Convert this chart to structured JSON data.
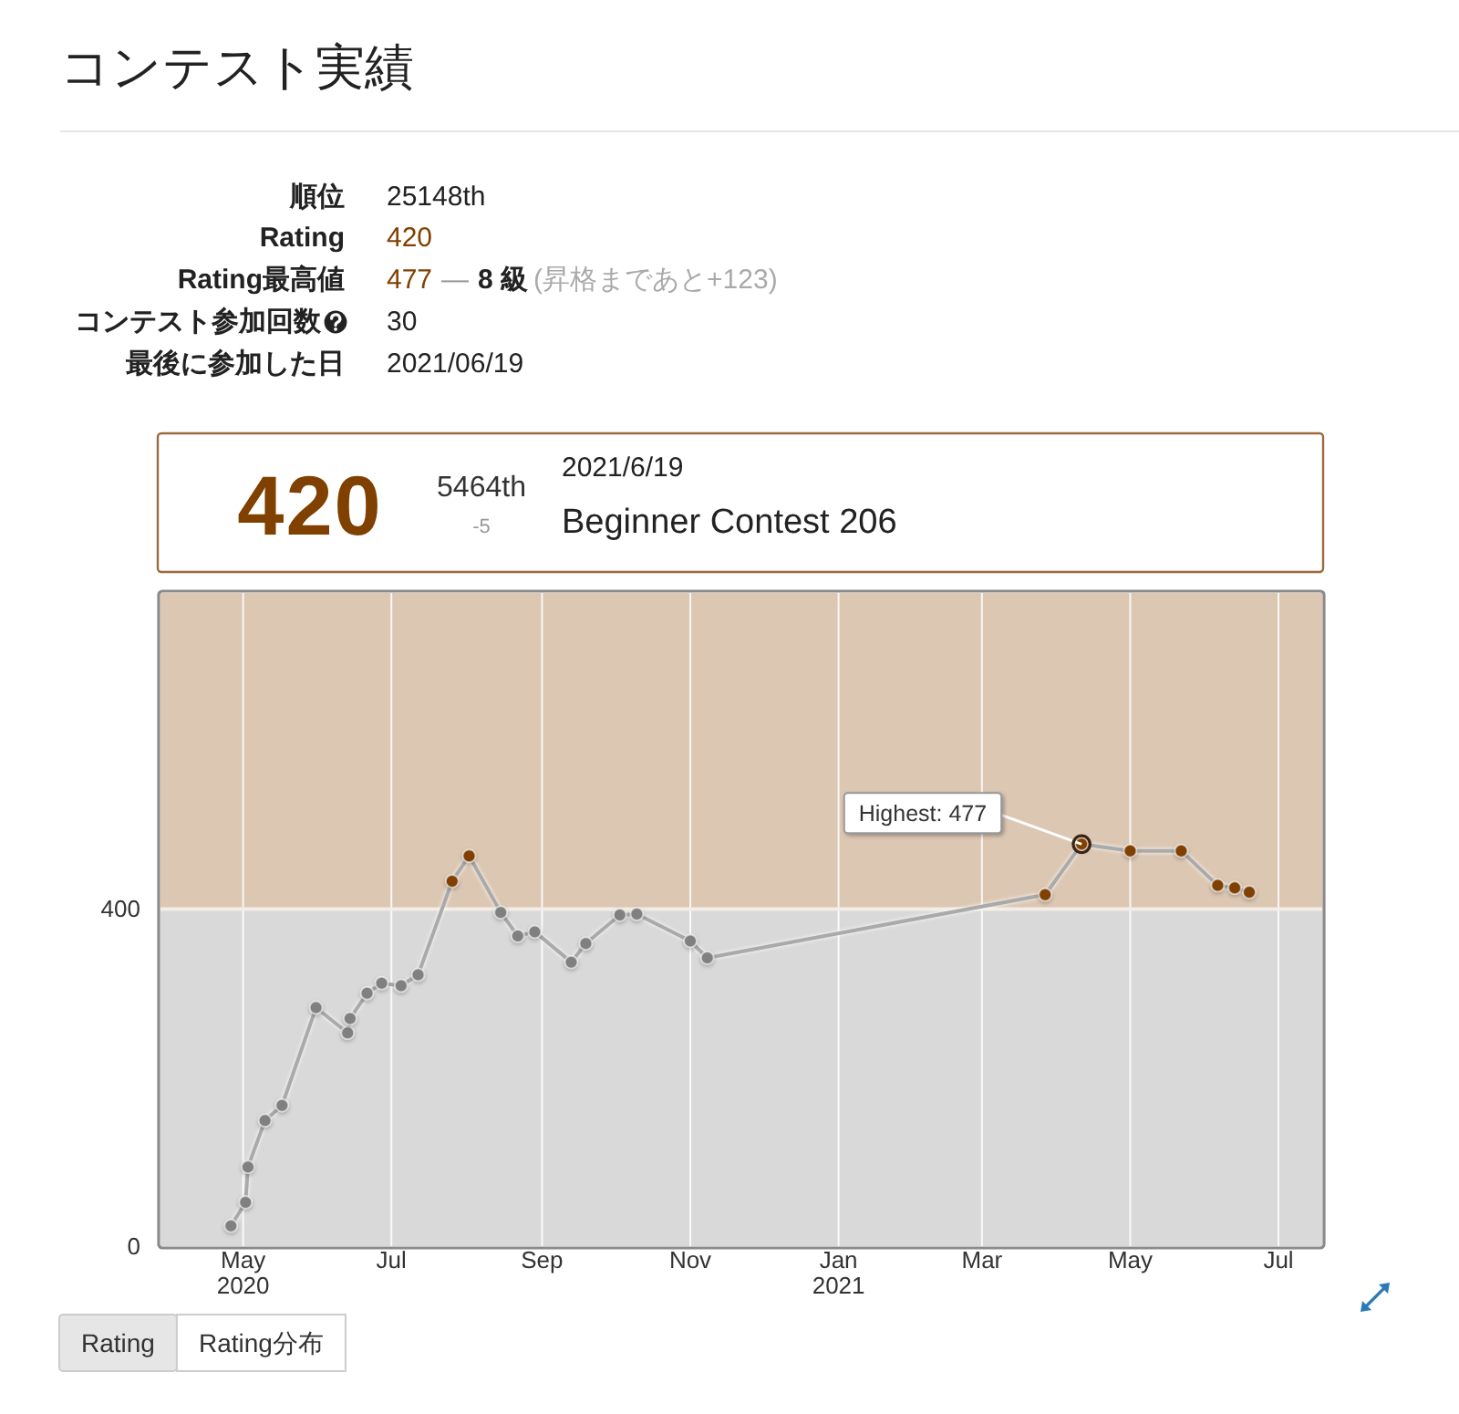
{
  "chart_data": {
    "type": "line",
    "title": "コンテスト実績",
    "x": [
      "2020-04-26",
      "2020-05-02",
      "2020-05-03",
      "2020-05-10",
      "2020-05-17",
      "2020-05-31",
      "2020-06-13",
      "2020-06-14",
      "2020-06-21",
      "2020-06-27",
      "2020-07-05",
      "2020-07-12",
      "2020-07-26",
      "2020-08-02",
      "2020-08-15",
      "2020-08-22",
      "2020-08-29",
      "2020-09-13",
      "2020-09-19",
      "2020-10-03",
      "2020-10-10",
      "2020-11-01",
      "2020-11-08",
      "2021-03-27",
      "2021-04-11",
      "2021-05-01",
      "2021-05-22",
      "2021-06-06",
      "2021-06-13",
      "2021-06-19"
    ],
    "series": [
      {
        "color": "#aaaaaa",
        "colors": [
          "#808080",
          "#808080",
          "#808080",
          "#808080",
          "#808080",
          "#808080",
          "#808080",
          "#808080",
          "#808080",
          "#808080",
          "#808080",
          "#808080",
          "#804000",
          "#804000",
          "#808080",
          "#808080",
          "#808080",
          "#808080",
          "#808080",
          "#808080",
          "#808080",
          "#808080",
          "#808080",
          "#804000",
          "#804000",
          "#804000",
          "#804000",
          "#804000",
          "#804000",
          "#804000"
        ],
        "values": [
          24,
          52,
          94,
          149,
          167,
          283,
          253,
          270,
          300,
          312,
          309,
          322,
          433,
          463,
          396,
          368,
          373,
          337,
          359,
          393,
          394,
          362,
          342,
          417,
          477,
          469,
          469,
          428,
          425,
          420
        ]
      }
    ],
    "xlim": [
      "2020-03-28",
      "2021-07-19"
    ],
    "xticks": [
      {
        "value": "2020-05-01",
        "label": "May\n2020"
      },
      {
        "value": "2020-07-01",
        "label": "Jul"
      },
      {
        "value": "2020-09-01",
        "label": "Sep"
      },
      {
        "value": "2020-11-01",
        "label": "Nov"
      },
      {
        "value": "2021-01-01",
        "label": "Jan\n2021"
      },
      {
        "value": "2021-03-01",
        "label": "Mar"
      },
      {
        "value": "2021-05-01",
        "label": "May"
      },
      {
        "value": "2021-07-01",
        "label": "Jul"
      }
    ],
    "ylim": [
      0,
      775
    ],
    "yticks": [
      0,
      400
    ],
    "bands": [
      {
        "axis": "y",
        "from": 0,
        "to": 400,
        "color": "#d9d9d9"
      },
      {
        "axis": "y",
        "from": 400,
        "to": 775,
        "color": "#dcc7b3"
      }
    ],
    "ref_lines": [
      {
        "axis": "y",
        "value": 400,
        "color": "#f4ede6"
      }
    ],
    "grid": "x",
    "marker": "circle",
    "line_style": "solid",
    "annotations": [
      "順位",
      "25148th",
      "Rating",
      "420",
      "Rating最高値",
      "477",
      "—",
      "8 級",
      "(昇格まであと+123)",
      "コンテスト参加回数",
      "30",
      "最後に参加した日",
      "2021/06/19",
      "420",
      "5464th",
      "-5",
      "2021/6/19",
      "Beginner Contest 206",
      "Rating",
      "Rating分布",
      {
        "text": "Highest: 477",
        "x": "2021-04-11",
        "y": 477
      }
    ]
  }
}
